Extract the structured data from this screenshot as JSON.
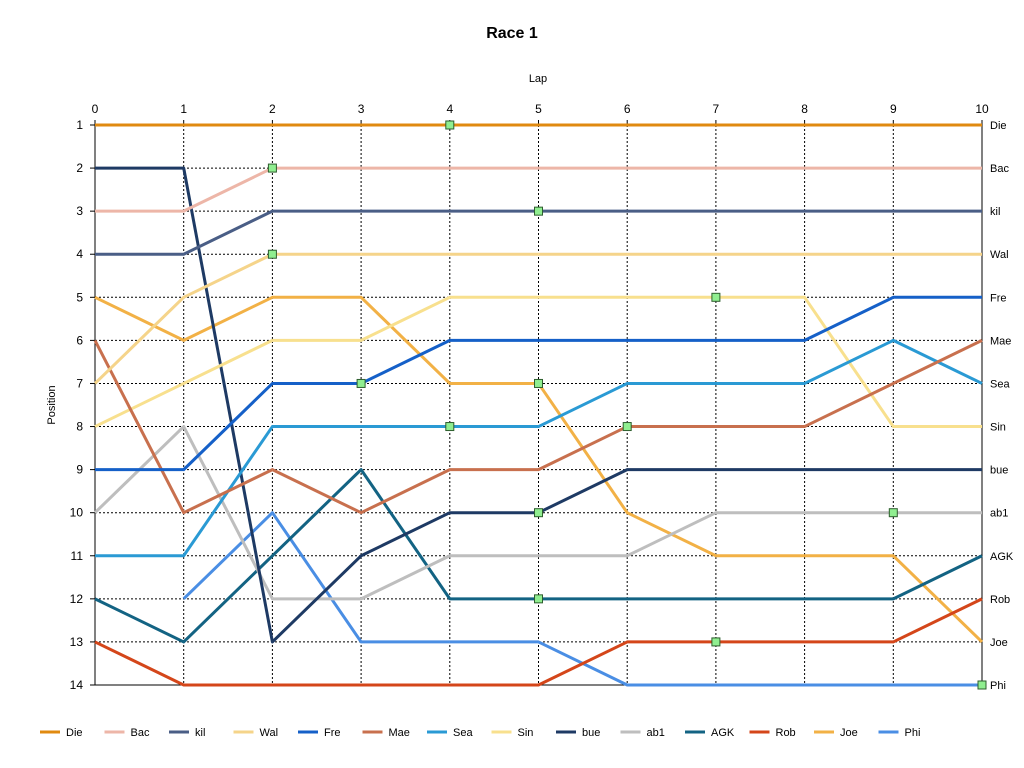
{
  "chart_data": {
    "type": "line",
    "title": "Race 1",
    "xlabel": "Lap",
    "ylabel": "Position",
    "x": [
      0,
      1,
      2,
      3,
      4,
      5,
      6,
      7,
      8,
      9,
      10
    ],
    "xlim": [
      0,
      10
    ],
    "ylim": [
      1,
      14
    ],
    "y_inverted": true,
    "y_ticks": [
      1,
      2,
      3,
      4,
      5,
      6,
      7,
      8,
      9,
      10,
      11,
      12,
      13,
      14
    ],
    "x_axis_position": "top",
    "grid": true,
    "legend_position": "bottom",
    "series": [
      {
        "name": "Die",
        "color": "#E08A10",
        "values": [
          1,
          1,
          1,
          1,
          1,
          1,
          1,
          1,
          1,
          1,
          1
        ],
        "marker_x": 4
      },
      {
        "name": "Bac",
        "color": "#EDB6A8",
        "values": [
          3,
          3,
          2,
          2,
          2,
          2,
          2,
          2,
          2,
          2,
          2
        ],
        "marker_x": 2
      },
      {
        "name": "kil",
        "color": "#4A5E86",
        "values": [
          4,
          4,
          3,
          3,
          3,
          3,
          3,
          3,
          3,
          3,
          3
        ],
        "marker_x": 5
      },
      {
        "name": "Wal",
        "color": "#F5D48A",
        "values": [
          7,
          5,
          4,
          4,
          4,
          4,
          4,
          4,
          4,
          4,
          4
        ],
        "marker_x": 2
      },
      {
        "name": "Fre",
        "color": "#1560C8",
        "values": [
          9,
          9,
          7,
          7,
          6,
          6,
          6,
          6,
          6,
          5,
          5
        ],
        "marker_x": 3
      },
      {
        "name": "Mae",
        "color": "#C8704E",
        "values": [
          6,
          10,
          9,
          10,
          9,
          9,
          8,
          8,
          8,
          7,
          6
        ],
        "marker_x": 6
      },
      {
        "name": "Sea",
        "color": "#2A9AD4",
        "values": [
          11,
          11,
          8,
          8,
          8,
          8,
          7,
          7,
          7,
          6,
          7
        ],
        "marker_x": 4
      },
      {
        "name": "Sin",
        "color": "#F8E08E",
        "values": [
          8,
          7,
          6,
          6,
          5,
          5,
          5,
          5,
          5,
          8,
          8
        ],
        "marker_x": 7
      },
      {
        "name": "bue",
        "color": "#1E3A64",
        "values": [
          2,
          2,
          13,
          11,
          10,
          10,
          9,
          9,
          9,
          9,
          9
        ],
        "marker_x": 5
      },
      {
        "name": "ab1",
        "color": "#BEBEBE",
        "values": [
          10,
          8,
          12,
          12,
          11,
          11,
          11,
          10,
          10,
          10,
          10
        ],
        "marker_x": 9
      },
      {
        "name": "AGK",
        "color": "#136383",
        "values": [
          12,
          13,
          11,
          9,
          12,
          12,
          12,
          12,
          12,
          12,
          11
        ],
        "marker_x": 5
      },
      {
        "name": "Rob",
        "color": "#D4461A",
        "values": [
          13,
          14,
          14,
          14,
          14,
          14,
          13,
          13,
          13,
          13,
          12
        ],
        "marker_x": 7
      },
      {
        "name": "Joe",
        "color": "#F2B146",
        "values": [
          5,
          6,
          5,
          5,
          7,
          7,
          10,
          11,
          11,
          11,
          13
        ],
        "marker_x": 5
      },
      {
        "name": "Phi",
        "color": "#4A8EE4",
        "values": [
          null,
          12,
          10,
          13,
          13,
          13,
          14,
          14,
          14,
          14,
          14
        ],
        "marker_x": 10
      }
    ]
  }
}
